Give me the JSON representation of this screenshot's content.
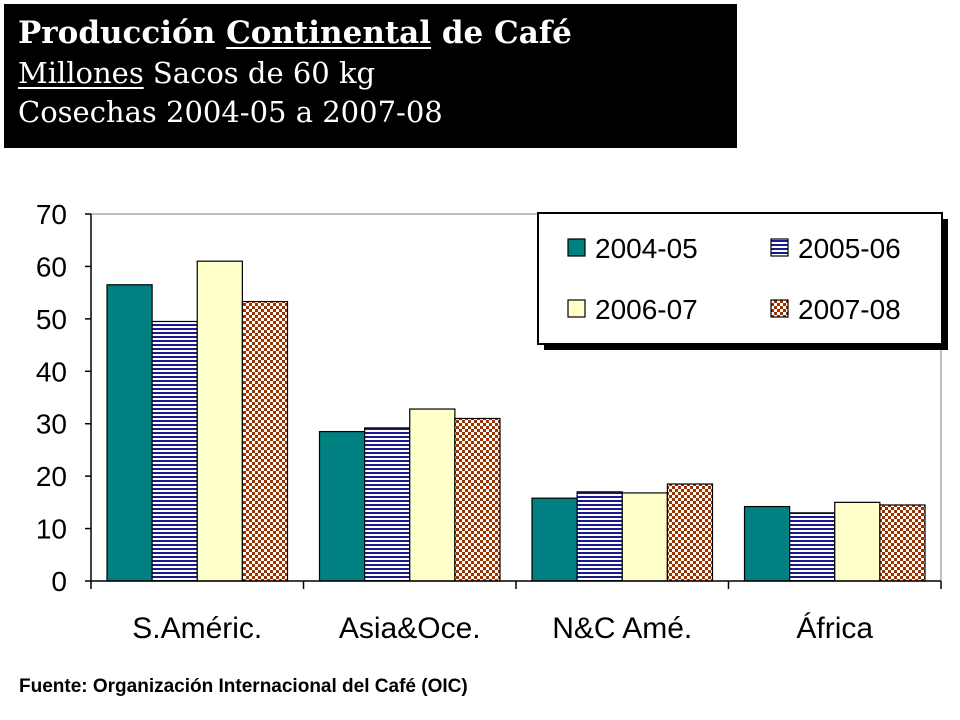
{
  "header": {
    "title_part1": "Producción",
    "title_part2": "Continental",
    "title_part3": "de Café",
    "subtitle1_part1": "Millones",
    "subtitle1_part2": "Sacos de 60 kg",
    "subtitle2": "Cosechas 2004-05 a 2007-08"
  },
  "chart_data": {
    "type": "bar",
    "categories": [
      "S.Améric.",
      "Asia&Oce.",
      "N&C Amé.",
      "África"
    ],
    "series": [
      {
        "name": "2004-05",
        "values": [
          56.5,
          28.5,
          15.8,
          14.2
        ],
        "color": "#008080",
        "pattern": "solid"
      },
      {
        "name": "2005-06",
        "values": [
          49.5,
          29.2,
          17.0,
          13.0
        ],
        "color": "#1a1a8c",
        "pattern": "horizontal-stripes"
      },
      {
        "name": "2006-07",
        "values": [
          61.0,
          32.8,
          16.8,
          15.0
        ],
        "color": "#ffffcc",
        "pattern": "solid"
      },
      {
        "name": "2007-08",
        "values": [
          53.3,
          31.0,
          18.5,
          14.5
        ],
        "color": "#993300",
        "pattern": "checker"
      }
    ],
    "ylim": [
      0,
      70
    ],
    "yticks": [
      0,
      10,
      20,
      30,
      40,
      50,
      60,
      70
    ],
    "xlabel": "",
    "ylabel": "",
    "grid": false,
    "legend_position": "top-right"
  },
  "footer": {
    "source": "Fuente: Organización Internacional del Café (OIC)"
  }
}
